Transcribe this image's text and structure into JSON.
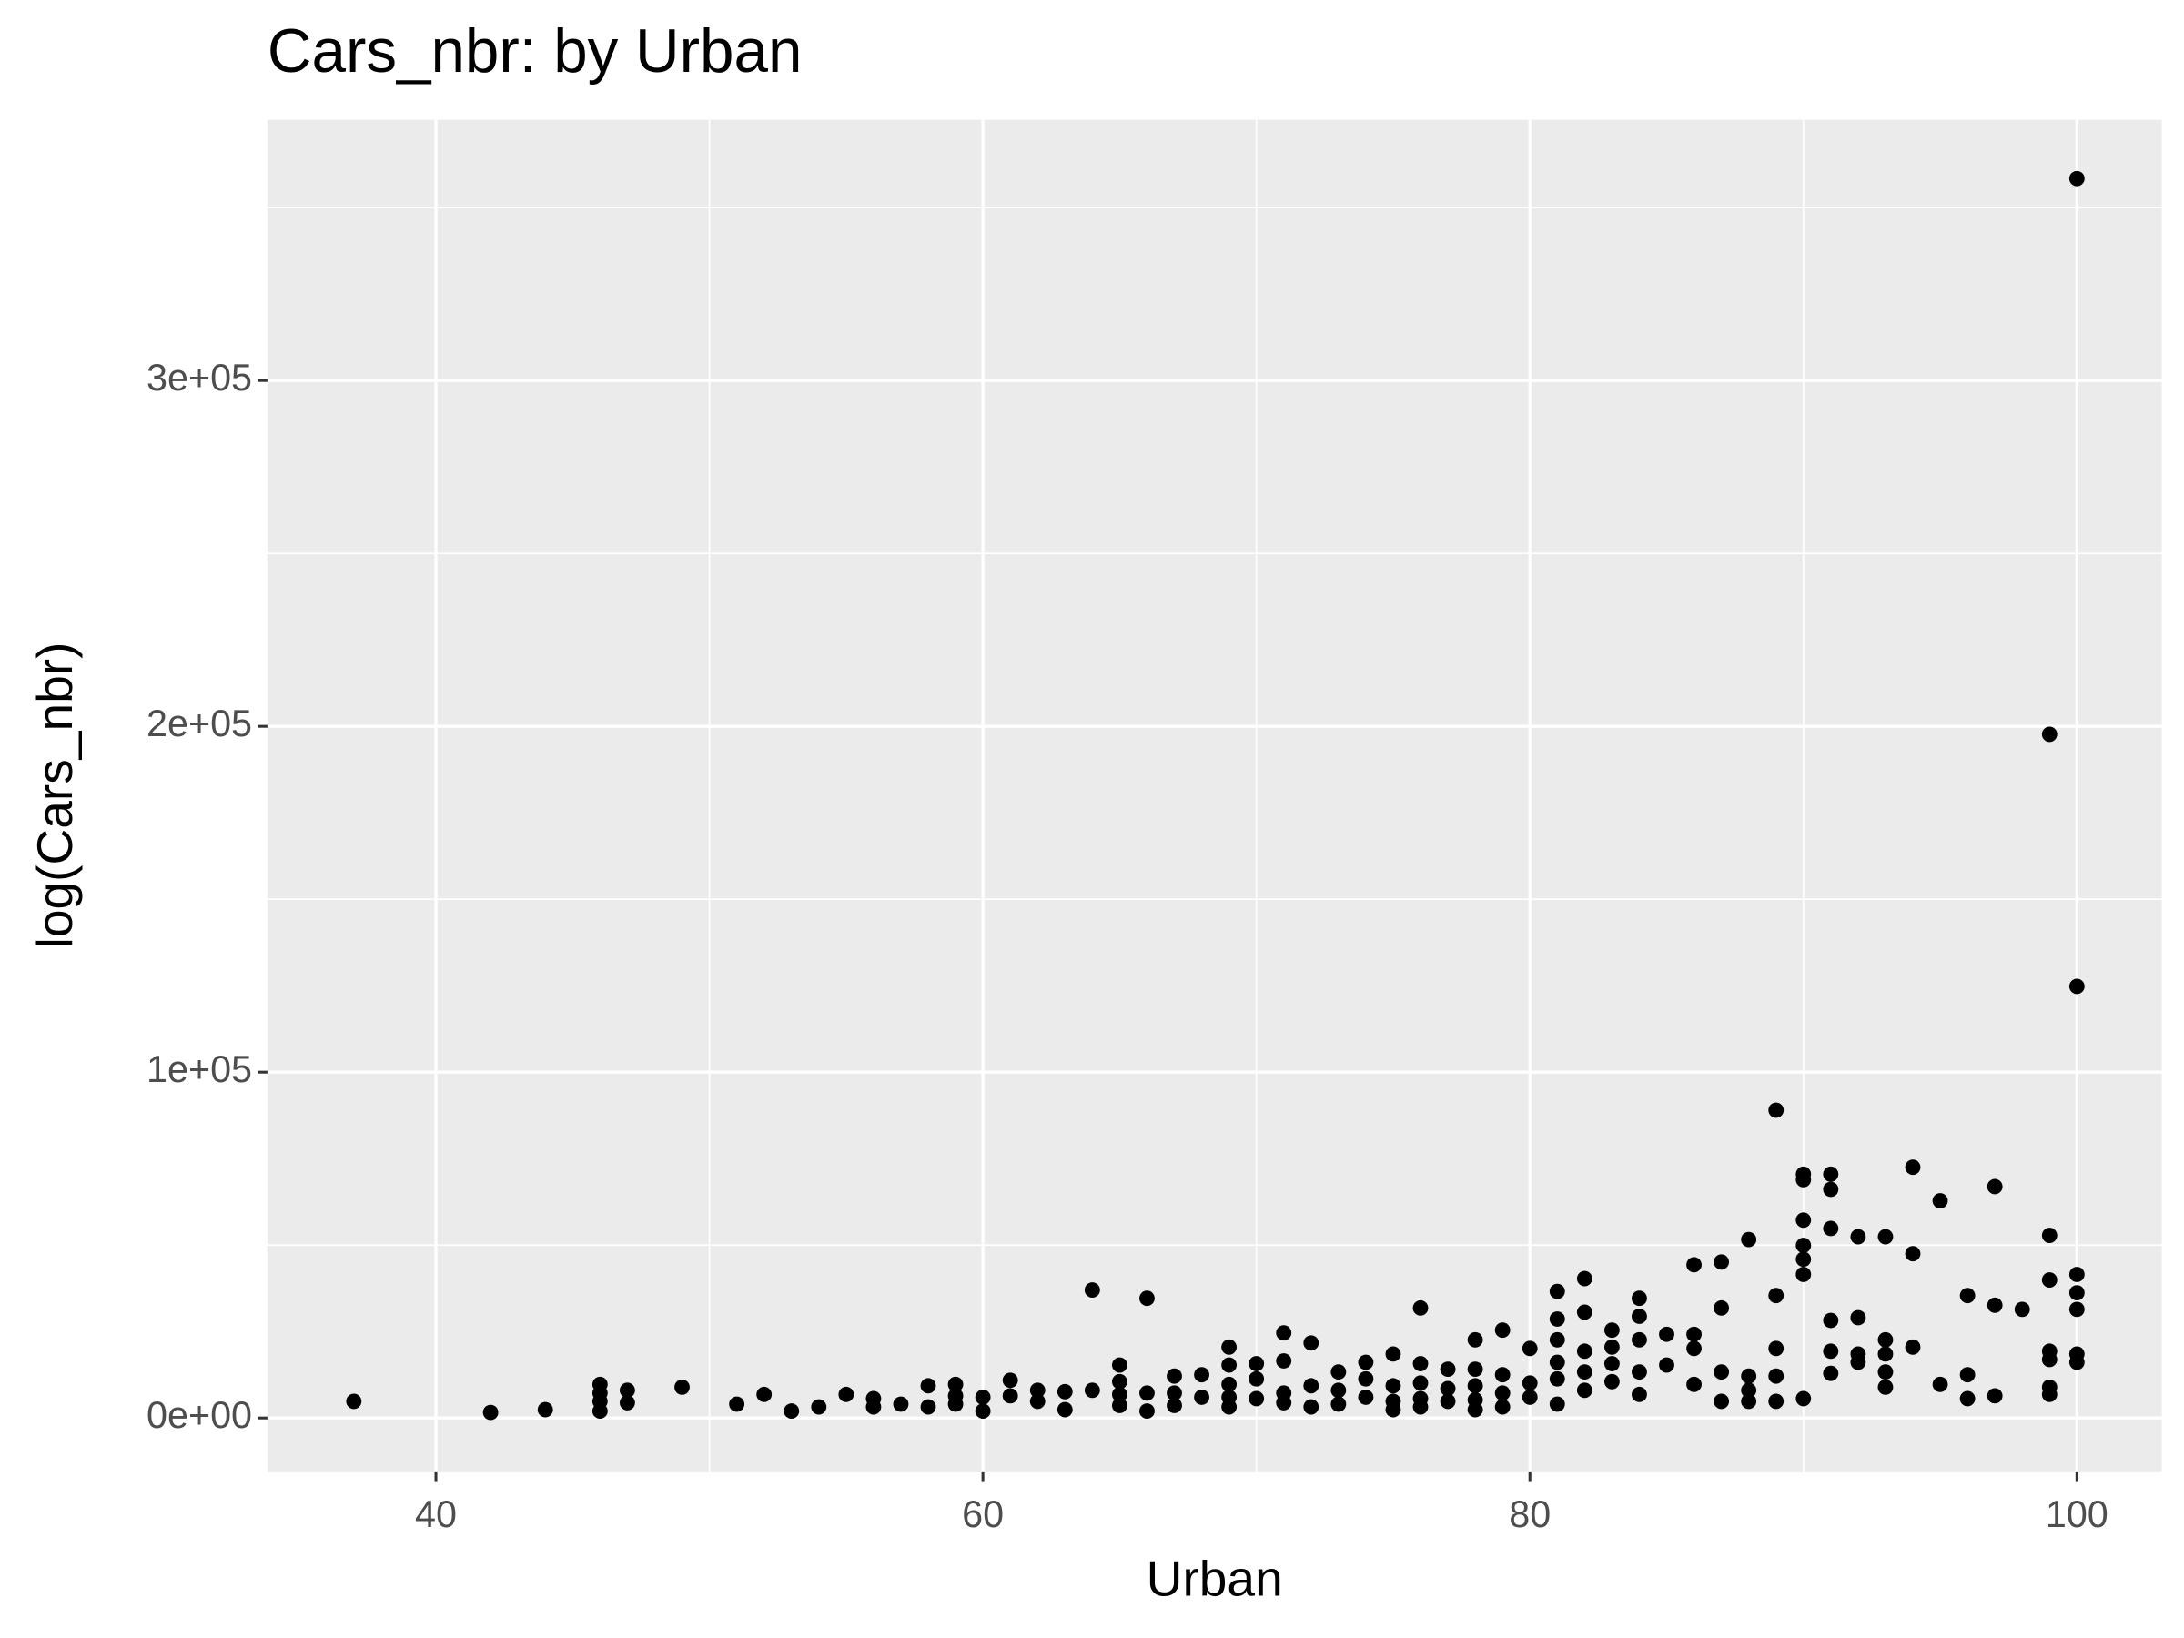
{
  "chart_data": {
    "type": "scatter",
    "title": "Cars_nbr: by Urban",
    "x_label": "Urban",
    "y_label": "log(Cars_nbr)",
    "color": "#000000",
    "panel_color": "#EBEBEB",
    "grid": true,
    "xlim": [
      33.84,
      103.1
    ],
    "ylim": [
      -15700,
      375400
    ],
    "xticks": [
      40,
      60,
      80,
      100
    ],
    "yticks": [
      {
        "value": 0,
        "label": "0e+00"
      },
      {
        "value": 100000,
        "label": "1e+05"
      },
      {
        "value": 200000,
        "label": "2e+05"
      },
      {
        "value": 300000,
        "label": "3e+05"
      }
    ],
    "x": [
      37,
      42,
      44,
      46,
      46,
      46,
      46,
      47,
      47,
      49,
      51,
      52,
      53,
      54,
      55,
      56,
      56,
      57,
      58,
      58,
      59,
      59,
      59,
      60,
      60,
      61,
      61,
      62,
      62,
      63,
      63,
      64,
      64,
      65,
      65,
      65,
      65,
      66,
      66,
      66,
      67,
      67,
      67,
      68,
      68,
      69,
      69,
      69,
      69,
      69,
      70,
      70,
      70,
      71,
      71,
      71,
      71,
      72,
      72,
      72,
      73,
      73,
      73,
      74,
      74,
      74,
      75,
      75,
      75,
      75,
      76,
      76,
      76,
      76,
      76,
      77,
      77,
      77,
      78,
      78,
      78,
      78,
      78,
      79,
      79,
      79,
      79,
      80,
      80,
      80,
      81,
      81,
      81,
      81,
      81,
      81,
      82,
      82,
      82,
      82,
      82,
      83,
      83,
      83,
      83,
      84,
      84,
      84,
      84,
      84,
      85,
      85,
      86,
      86,
      86,
      86,
      87,
      87,
      87,
      87,
      88,
      88,
      88,
      88,
      89,
      89,
      89,
      89,
      89,
      90,
      90,
      90,
      90,
      90,
      90,
      90,
      91,
      91,
      91,
      91,
      91,
      91,
      92,
      92,
      92,
      92,
      93,
      93,
      93,
      93,
      93,
      94,
      94,
      94,
      95,
      95,
      96,
      96,
      96,
      97,
      97,
      97,
      98,
      99,
      99,
      99,
      99,
      99,
      99,
      99,
      100,
      100,
      100,
      100,
      100,
      100,
      100
    ],
    "values": [
      4800,
      1600,
      2400,
      9700,
      7200,
      4800,
      2000,
      8000,
      4400,
      8900,
      4000,
      6800,
      2000,
      3200,
      6800,
      5600,
      3200,
      4000,
      9300,
      3200,
      9700,
      6400,
      4000,
      6000,
      2000,
      10900,
      6400,
      8000,
      4800,
      7600,
      2400,
      37000,
      8000,
      15300,
      10500,
      6800,
      3600,
      34600,
      7200,
      2000,
      12100,
      7200,
      3600,
      12500,
      6000,
      20500,
      15300,
      9700,
      6000,
      3200,
      15700,
      11300,
      5600,
      24600,
      16500,
      7200,
      4400,
      21700,
      9300,
      3200,
      13300,
      8000,
      4000,
      16100,
      11300,
      6000,
      18500,
      9300,
      4800,
      2400,
      31800,
      15700,
      10100,
      5600,
      3200,
      14100,
      8500,
      4800,
      22600,
      14100,
      9300,
      5200,
      2400,
      25400,
      12500,
      7200,
      3200,
      20100,
      10100,
      6000,
      36600,
      28600,
      22600,
      16100,
      11300,
      4000,
      40300,
      30600,
      19300,
      13300,
      8000,
      25400,
      20500,
      15700,
      10500,
      34600,
      29400,
      22600,
      13300,
      6800,
      24200,
      15300,
      44300,
      24200,
      20100,
      9700,
      45100,
      31800,
      13300,
      4800,
      51600,
      12100,
      8000,
      4800,
      89000,
      35400,
      20100,
      12100,
      4800,
      70500,
      68900,
      57200,
      49900,
      45900,
      41500,
      5600,
      70500,
      66100,
      54800,
      28200,
      19300,
      12900,
      52400,
      29000,
      18500,
      16100,
      52400,
      22600,
      18500,
      13300,
      8900,
      72500,
      47500,
      20500,
      62800,
      9700,
      35400,
      12500,
      5600,
      66900,
      32600,
      6400,
      31400,
      197700,
      52800,
      39900,
      19300,
      16900,
      8900,
      6800,
      358400,
      124800,
      41500,
      36200,
      31400,
      18500,
      16100
    ]
  }
}
